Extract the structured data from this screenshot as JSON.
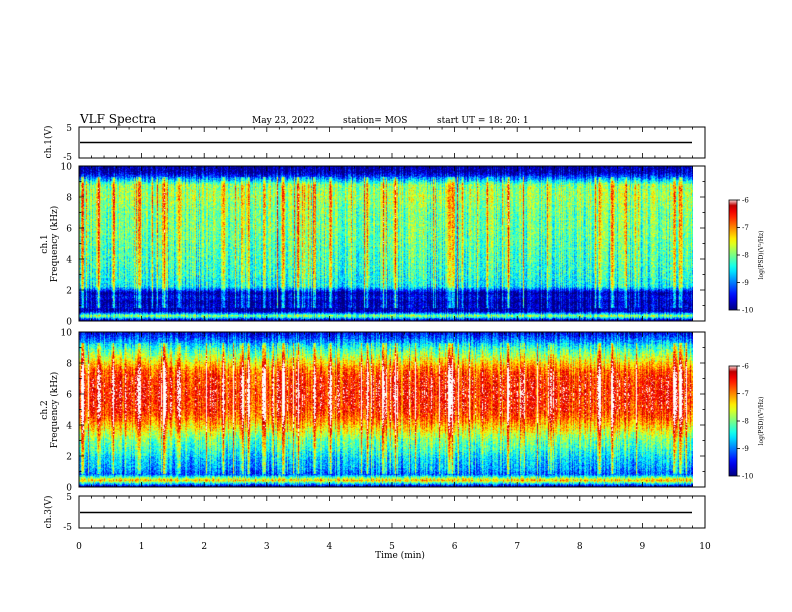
{
  "header": {
    "title": "VLF Spectra",
    "date": "May 23, 2022",
    "station": "station= MOS",
    "start": "start  UT =  18: 20: 1"
  },
  "x_axis": {
    "label": "Time  (min)",
    "ticks": [
      "0",
      "1",
      "2",
      "3",
      "4",
      "5",
      "6",
      "7",
      "8",
      "9",
      "10"
    ]
  },
  "panels": {
    "ch1_waveform": {
      "ylabel": "ch.1(V)",
      "ticks": [
        "5",
        "-5"
      ]
    },
    "ch1_spectrogram": {
      "ylabel": "ch.1",
      "ylabel2": "Frequency (kHz)",
      "ticks": [
        "10",
        "8",
        "6",
        "4",
        "2",
        "0"
      ]
    },
    "ch2_spectrogram": {
      "ylabel": "ch.2",
      "ylabel2": "Frequency (kHz)",
      "ticks": [
        "10",
        "8",
        "6",
        "4",
        "2",
        "0"
      ]
    },
    "ch3_waveform": {
      "ylabel": "ch.3(V)",
      "ticks": [
        "5",
        "-5"
      ]
    }
  },
  "colorbars": [
    {
      "label": "log(PSD)(V²/Hz)",
      "ticks": [
        "-6",
        "-7",
        "-8",
        "-9",
        "-10"
      ]
    },
    {
      "label": "log(PSD)(V²/Hz)",
      "ticks": [
        "-6",
        "-7",
        "-8",
        "-9",
        "-10"
      ]
    }
  ],
  "colors": {
    "jet": [
      "#000033",
      "#00007f",
      "#0000ff",
      "#0080ff",
      "#00ffff",
      "#40ff80",
      "#80ff00",
      "#ffff00",
      "#ff8000",
      "#ff0000",
      "#ff8080",
      "#ffffff"
    ]
  },
  "chart_data": {
    "type": "heatmap",
    "x_unit": "min",
    "xlim": [
      0,
      10
    ],
    "data_extent_min": 9.8,
    "ylim_kHz": [
      0,
      10
    ],
    "clim": [
      -10,
      -6
    ],
    "panels": [
      {
        "name": "ch.1",
        "profile_freq_kHz": [
          0,
          0.3,
          0.6,
          0.9,
          1.2,
          1.5,
          1.8,
          2.2,
          3,
          4,
          5,
          6,
          7,
          8,
          8.8,
          9.2,
          9.6,
          10
        ],
        "profile_logpsd": [
          -9.9,
          -7.8,
          -9.9,
          -9.7,
          -9.9,
          -9.6,
          -9.9,
          -8.6,
          -8.4,
          -8.3,
          -8.2,
          -8.1,
          -8.1,
          -7.9,
          -8.0,
          -9.0,
          -9.8,
          -9.95
        ],
        "bursts_min": [
          0.05,
          0.3,
          0.55,
          0.95,
          1.35,
          1.6,
          2.3,
          2.6,
          2.7,
          2.95,
          3.25,
          3.5,
          3.75,
          4.0,
          4.6,
          4.85,
          5.05,
          5.9,
          5.95,
          6.85,
          8.3,
          8.5,
          9.5,
          9.6
        ]
      },
      {
        "name": "ch.2",
        "profile_freq_kHz": [
          0,
          0.4,
          0.8,
          1.2,
          1.8,
          2.5,
          3,
          3.5,
          4,
          4.5,
          5,
          6,
          7,
          7.5,
          8,
          8.5,
          9,
          9.5,
          10
        ],
        "profile_logpsd": [
          -9.9,
          -7.2,
          -9.2,
          -8.9,
          -8.7,
          -8.3,
          -8.1,
          -7.7,
          -7.3,
          -6.9,
          -6.7,
          -6.6,
          -6.7,
          -6.9,
          -7.4,
          -7.9,
          -8.4,
          -9.0,
          -9.6
        ],
        "bursts_min": [
          0.05,
          0.3,
          0.55,
          0.95,
          1.35,
          1.6,
          2.3,
          2.6,
          2.7,
          2.95,
          3.25,
          3.5,
          3.75,
          4.0,
          4.6,
          4.85,
          5.05,
          5.9,
          5.95,
          6.85,
          8.3,
          8.5,
          9.5,
          9.6
        ]
      }
    ],
    "waveforms": [
      {
        "name": "ch.1(V)",
        "ylim": [
          -5,
          5
        ],
        "level": 0
      },
      {
        "name": "ch.3(V)",
        "ylim": [
          -5,
          5
        ],
        "level": 0
      }
    ]
  }
}
